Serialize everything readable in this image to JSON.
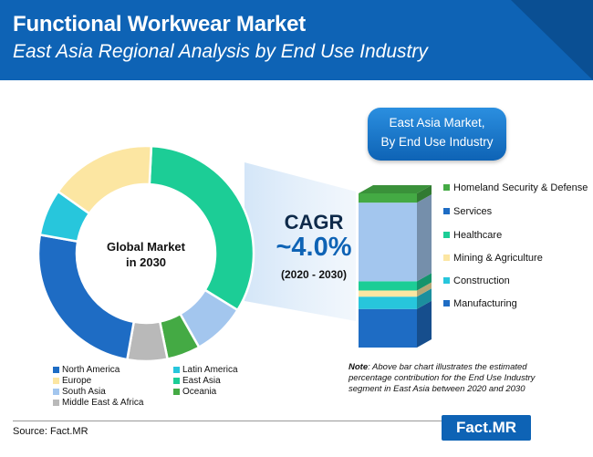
{
  "header": {
    "title": "Functional Workwear Market",
    "subtitle": "East Asia Regional Analysis by End Use Industry"
  },
  "callout": {
    "line1": "East Asia Market,",
    "line2": "By End Use Industry"
  },
  "donut_center": {
    "line1": "Global Market",
    "line2": "in 2030"
  },
  "cagr": {
    "label": "CAGR",
    "value": "~4.0%",
    "period": "(2020 - 2030)"
  },
  "note": {
    "lead": "Note",
    "text": ": Above bar chart illustrates the estimated percentage contribution for the End Use Industry segment in East Asia between 2020 and 2030"
  },
  "source": "Source: Fact.MR",
  "logo": "Fact.MR",
  "colors": {
    "brand_blue": "#0e63b5",
    "north_america": "#1e6cc4",
    "latin_america": "#27c6dc",
    "europe": "#fce6a2",
    "east_asia": "#1ccd96",
    "south_asia": "#a3c6ee",
    "oceania": "#44aa44",
    "middle_east_africa": "#b9b9b9"
  },
  "chart_data": [
    {
      "type": "pie",
      "donut": true,
      "legend_position": "bottom",
      "series": [
        {
          "name": "East Asia",
          "value": 33,
          "color": "#1ccd96"
        },
        {
          "name": "South Asia",
          "value": 8,
          "color": "#a3c6ee"
        },
        {
          "name": "Oceania",
          "value": 5,
          "color": "#44aa44"
        },
        {
          "name": "Middle East & Africa",
          "value": 6,
          "color": "#b9b9b9"
        },
        {
          "name": "North America",
          "value": 25,
          "color": "#1e6cc4"
        },
        {
          "name": "Latin America",
          "value": 7,
          "color": "#27c6dc"
        },
        {
          "name": "Europe",
          "value": 16,
          "color": "#fce6a2"
        }
      ],
      "legend": [
        {
          "name": "North America",
          "color": "#1e6cc4"
        },
        {
          "name": "Latin America",
          "color": "#27c6dc"
        },
        {
          "name": "Europe",
          "color": "#fce6a2"
        },
        {
          "name": "East Asia",
          "color": "#1ccd96"
        },
        {
          "name": "South Asia",
          "color": "#a3c6ee"
        },
        {
          "name": "Oceania",
          "color": "#44aa44"
        },
        {
          "name": "Middle East & Africa",
          "color": "#b9b9b9"
        }
      ]
    },
    {
      "type": "bar",
      "stacked": true,
      "unit": "%",
      "legend_position": "right",
      "series": [
        {
          "name": "Manufacturing",
          "value": 25,
          "color": "#1e6cc4"
        },
        {
          "name": "Construction",
          "value": 8,
          "color": "#27c6dc"
        },
        {
          "name": "Mining & Agriculture",
          "value": 4,
          "color": "#fce6a2"
        },
        {
          "name": "Healthcare",
          "value": 6,
          "color": "#1ccd96"
        },
        {
          "name": "Services",
          "value": 51,
          "color": "#a3c6ee"
        },
        {
          "name": "Homeland Security & Defense",
          "value": 6,
          "color": "#44aa44"
        }
      ],
      "legend": [
        {
          "name": "Homeland Security & Defense",
          "color": "#44aa44"
        },
        {
          "name": "Services",
          "color": "#1e6cc4"
        },
        {
          "name": "Healthcare",
          "color": "#1ccd96"
        },
        {
          "name": "Mining & Agriculture",
          "color": "#fce6a2"
        },
        {
          "name": "Construction",
          "color": "#27c6dc"
        },
        {
          "name": "Manufacturing",
          "color": "#1e6cc4"
        }
      ]
    }
  ]
}
